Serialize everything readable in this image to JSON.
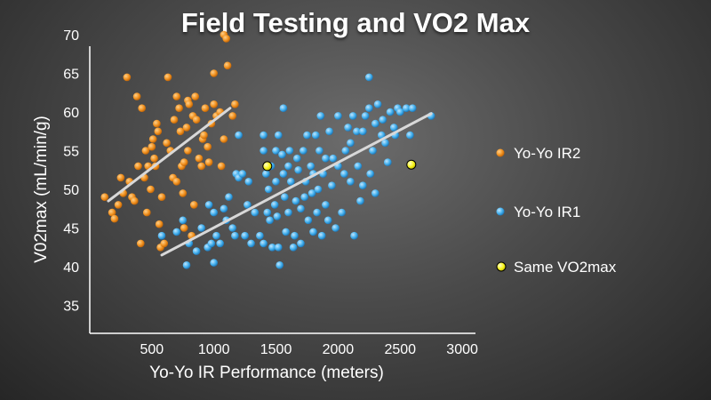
{
  "chart_data": {
    "type": "scatter",
    "title": "Field Testing and VO2 Max",
    "xlabel": "Yo-Yo IR Performance  (meters)",
    "ylabel": "V02max (mL/min/g)",
    "xlim": [
      0,
      3000
    ],
    "ylim": [
      32,
      71
    ],
    "x_ticks": [
      500,
      1000,
      1500,
      2000,
      2500,
      3000
    ],
    "y_ticks": [
      35,
      40,
      45,
      50,
      55,
      60,
      65,
      70
    ],
    "grid": false,
    "legend_position": "right",
    "series": [
      {
        "name": "Yo-Yo IR2",
        "color": "#f0901e",
        "points": [
          [
            120,
            49
          ],
          [
            180,
            47
          ],
          [
            200,
            46.2
          ],
          [
            230,
            48
          ],
          [
            250,
            51.5
          ],
          [
            270,
            49.5
          ],
          [
            300,
            64.5
          ],
          [
            320,
            51
          ],
          [
            340,
            49
          ],
          [
            360,
            48.5
          ],
          [
            380,
            62
          ],
          [
            390,
            53
          ],
          [
            410,
            43
          ],
          [
            420,
            60.5
          ],
          [
            440,
            51.5
          ],
          [
            450,
            55
          ],
          [
            460,
            47
          ],
          [
            470,
            53
          ],
          [
            490,
            50
          ],
          [
            500,
            55.5
          ],
          [
            510,
            56.5
          ],
          [
            520,
            54
          ],
          [
            530,
            53
          ],
          [
            540,
            58.5
          ],
          [
            550,
            57.5
          ],
          [
            560,
            45.5
          ],
          [
            570,
            42.5
          ],
          [
            580,
            49
          ],
          [
            600,
            43
          ],
          [
            620,
            56
          ],
          [
            630,
            64.5
          ],
          [
            650,
            55
          ],
          [
            670,
            51.5
          ],
          [
            680,
            59
          ],
          [
            700,
            51
          ],
          [
            700,
            62
          ],
          [
            720,
            60.5
          ],
          [
            730,
            57.5
          ],
          [
            740,
            53
          ],
          [
            750,
            49.5
          ],
          [
            760,
            53.5
          ],
          [
            760,
            45
          ],
          [
            780,
            58
          ],
          [
            790,
            55
          ],
          [
            790,
            61.5
          ],
          [
            800,
            61
          ],
          [
            820,
            44
          ],
          [
            830,
            59.5
          ],
          [
            840,
            48
          ],
          [
            850,
            62
          ],
          [
            860,
            59
          ],
          [
            880,
            54
          ],
          [
            900,
            53
          ],
          [
            910,
            56.5
          ],
          [
            920,
            57
          ],
          [
            930,
            60.5
          ],
          [
            950,
            55.5
          ],
          [
            960,
            53.5
          ],
          [
            980,
            58.5
          ],
          [
            1000,
            65
          ],
          [
            1000,
            61
          ],
          [
            1020,
            59.5
          ],
          [
            1050,
            60
          ],
          [
            1060,
            53
          ],
          [
            1080,
            56.5
          ],
          [
            1080,
            70
          ],
          [
            1100,
            69.5
          ],
          [
            1110,
            66
          ],
          [
            1150,
            59.5
          ],
          [
            1170,
            61
          ]
        ],
        "trendline": [
          [
            150,
            48.5
          ],
          [
            1130,
            60.5
          ]
        ]
      },
      {
        "name": "Yo-Yo IR1",
        "color": "#40aeec",
        "points": [
          [
            580,
            44
          ],
          [
            700,
            44.5
          ],
          [
            750,
            46
          ],
          [
            780,
            40.2
          ],
          [
            800,
            43
          ],
          [
            860,
            42
          ],
          [
            900,
            45
          ],
          [
            950,
            42.5
          ],
          [
            960,
            48
          ],
          [
            980,
            43
          ],
          [
            1000,
            40.5
          ],
          [
            1000,
            47
          ],
          [
            1020,
            44
          ],
          [
            1050,
            43
          ],
          [
            1080,
            47.5
          ],
          [
            1100,
            46
          ],
          [
            1120,
            49
          ],
          [
            1150,
            45
          ],
          [
            1170,
            44
          ],
          [
            1180,
            52
          ],
          [
            1200,
            51.5
          ],
          [
            1200,
            57
          ],
          [
            1230,
            52
          ],
          [
            1250,
            44
          ],
          [
            1270,
            48
          ],
          [
            1280,
            51
          ],
          [
            1300,
            43
          ],
          [
            1330,
            47
          ],
          [
            1370,
            44
          ],
          [
            1400,
            57
          ],
          [
            1400,
            55
          ],
          [
            1400,
            43
          ],
          [
            1420,
            52
          ],
          [
            1430,
            47
          ],
          [
            1440,
            50
          ],
          [
            1450,
            46
          ],
          [
            1460,
            53
          ],
          [
            1470,
            42.5
          ],
          [
            1490,
            48
          ],
          [
            1500,
            55
          ],
          [
            1500,
            51
          ],
          [
            1510,
            46.5
          ],
          [
            1520,
            42.5
          ],
          [
            1520,
            57
          ],
          [
            1530,
            40.2
          ],
          [
            1550,
            54.5
          ],
          [
            1560,
            60.5
          ],
          [
            1560,
            52
          ],
          [
            1570,
            49
          ],
          [
            1580,
            44.5
          ],
          [
            1600,
            53
          ],
          [
            1600,
            47
          ],
          [
            1610,
            55
          ],
          [
            1620,
            51
          ],
          [
            1640,
            42.5
          ],
          [
            1650,
            44
          ],
          [
            1660,
            48.5
          ],
          [
            1670,
            54
          ],
          [
            1680,
            52.5
          ],
          [
            1700,
            47.5
          ],
          [
            1700,
            43
          ],
          [
            1720,
            55
          ],
          [
            1730,
            49
          ],
          [
            1740,
            51
          ],
          [
            1750,
            57
          ],
          [
            1760,
            46
          ],
          [
            1780,
            53
          ],
          [
            1790,
            49.5
          ],
          [
            1800,
            52
          ],
          [
            1800,
            44.5
          ],
          [
            1820,
            57
          ],
          [
            1830,
            47
          ],
          [
            1840,
            50
          ],
          [
            1850,
            55
          ],
          [
            1860,
            59.5
          ],
          [
            1870,
            44
          ],
          [
            1880,
            52
          ],
          [
            1900,
            54
          ],
          [
            1900,
            48
          ],
          [
            1920,
            46
          ],
          [
            1930,
            57.5
          ],
          [
            1950,
            50.5
          ],
          [
            1960,
            54
          ],
          [
            1980,
            45
          ],
          [
            2000,
            53
          ],
          [
            2000,
            59.5
          ],
          [
            2030,
            47
          ],
          [
            2050,
            52
          ],
          [
            2060,
            55
          ],
          [
            2080,
            58
          ],
          [
            2100,
            56
          ],
          [
            2100,
            51
          ],
          [
            2120,
            59.5
          ],
          [
            2130,
            44
          ],
          [
            2150,
            57.5
          ],
          [
            2160,
            53
          ],
          [
            2180,
            48.5
          ],
          [
            2200,
            50.5
          ],
          [
            2200,
            57.5
          ],
          [
            2220,
            59.5
          ],
          [
            2250,
            64.5
          ],
          [
            2260,
            52
          ],
          [
            2280,
            55
          ],
          [
            2300,
            58.5
          ],
          [
            2300,
            49.5
          ],
          [
            2320,
            61
          ],
          [
            2350,
            57
          ],
          [
            2360,
            59
          ],
          [
            2380,
            56
          ],
          [
            2400,
            53.5
          ],
          [
            2420,
            60
          ],
          [
            2450,
            58
          ],
          [
            2460,
            57
          ],
          [
            2480,
            60.5
          ],
          [
            2500,
            60
          ],
          [
            2550,
            60.5
          ],
          [
            2580,
            57
          ],
          [
            2600,
            60.5
          ],
          [
            2750,
            59.5
          ],
          [
            2250,
            60.5
          ]
        ],
        "trendline": [
          [
            580,
            41.5
          ],
          [
            2750,
            59.8
          ]
        ]
      },
      {
        "name": "Same VO2max",
        "color": "#f8f41a",
        "points": [
          [
            1430,
            53
          ],
          [
            2590,
            53.2
          ]
        ]
      }
    ]
  }
}
